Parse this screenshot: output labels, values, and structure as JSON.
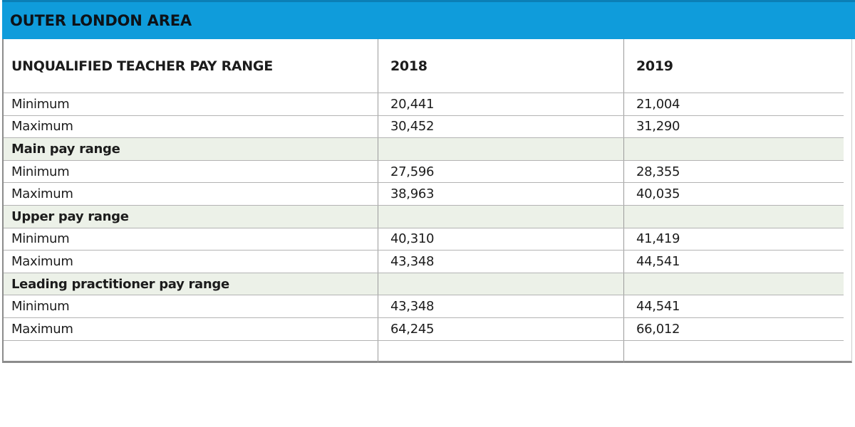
{
  "title": "OUTER LONDON AREA",
  "colors": {
    "title_bar_blue": "#0f9cdb",
    "title_bar_blue_dark_edge": "#0b7fb6",
    "section_row_green": "#ecf1e8",
    "row_line_gray": "#b3b3b3",
    "column_divider_gray": "#9b9b9b",
    "outer_border_gray": "#8c8c8c",
    "text_black": "#1c1c1c"
  },
  "table": {
    "columns": [
      "UNQUALIFIED TEACHER PAY RANGE",
      "2018",
      "2019"
    ],
    "rows": [
      {
        "type": "data",
        "label": "Minimum",
        "y2018": "20,441",
        "y2019": "21,004"
      },
      {
        "type": "data",
        "label": "Maximum",
        "y2018": "30,452",
        "y2019": "31,290"
      },
      {
        "type": "section",
        "label": "Main pay range",
        "y2018": "",
        "y2019": ""
      },
      {
        "type": "data",
        "label": "Minimum",
        "y2018": "27,596",
        "y2019": "28,355"
      },
      {
        "type": "data",
        "label": "Maximum",
        "y2018": "38,963",
        "y2019": "40,035"
      },
      {
        "type": "section",
        "label": "Upper pay range",
        "y2018": "",
        "y2019": ""
      },
      {
        "type": "data",
        "label": "Minimum",
        "y2018": "40,310",
        "y2019": "41,419"
      },
      {
        "type": "data",
        "label": "Maximum",
        "y2018": "43,348",
        "y2019": "44,541"
      },
      {
        "type": "section",
        "label": "Leading practitioner pay range",
        "y2018": "",
        "y2019": ""
      },
      {
        "type": "data",
        "label": "Minimum",
        "y2018": "43,348",
        "y2019": "44,541"
      },
      {
        "type": "data",
        "label": "Maximum",
        "y2018": "64,245",
        "y2019": "66,012"
      },
      {
        "type": "empty",
        "label": "",
        "y2018": "",
        "y2019": ""
      }
    ]
  },
  "chart_data": {
    "type": "table",
    "title": "OUTER LONDON AREA",
    "columns": [
      "UNQUALIFIED TEACHER PAY RANGE",
      "2018",
      "2019"
    ],
    "sections": [
      {
        "name": "Unqualified teacher pay range",
        "rows": [
          {
            "label": "Minimum",
            "2018": 20441,
            "2019": 21004
          },
          {
            "label": "Maximum",
            "2018": 30452,
            "2019": 31290
          }
        ]
      },
      {
        "name": "Main pay range",
        "rows": [
          {
            "label": "Minimum",
            "2018": 27596,
            "2019": 28355
          },
          {
            "label": "Maximum",
            "2018": 38963,
            "2019": 40035
          }
        ]
      },
      {
        "name": "Upper pay range",
        "rows": [
          {
            "label": "Minimum",
            "2018": 40310,
            "2019": 41419
          },
          {
            "label": "Maximum",
            "2018": 43348,
            "2019": 44541
          }
        ]
      },
      {
        "name": "Leading practitioner pay range",
        "rows": [
          {
            "label": "Minimum",
            "2018": 43348,
            "2019": 44541
          },
          {
            "label": "Maximum",
            "2018": 64245,
            "2019": 66012
          }
        ]
      }
    ]
  }
}
